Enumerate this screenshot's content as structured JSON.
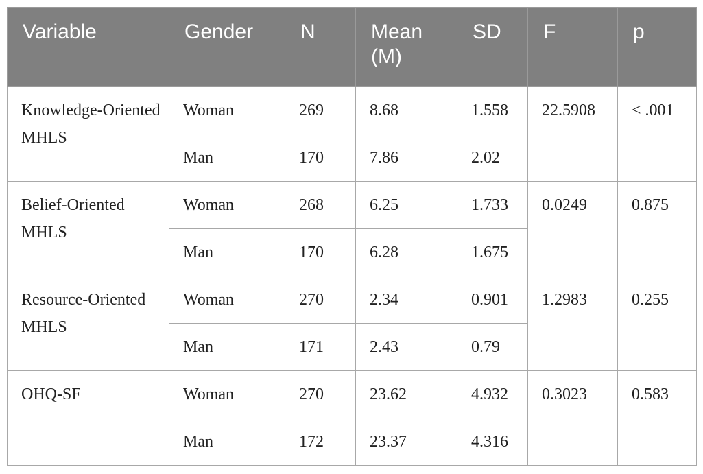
{
  "table": {
    "header": [
      "Variable",
      "Gender",
      "N",
      "Mean (M)",
      "SD",
      "F",
      "p"
    ],
    "groups": [
      {
        "variable": "Knowledge-Oriented MHLS",
        "F": 22.5908,
        "p": "< .001",
        "rows": [
          [
            "Woman",
            269,
            8.68,
            1.558
          ],
          [
            "Man",
            170,
            7.86,
            2.02
          ]
        ]
      },
      {
        "variable": "Belief-Oriented MHLS",
        "F": 0.0249,
        "p": 0.875,
        "rows": [
          [
            "Woman",
            268,
            6.25,
            1.733
          ],
          [
            "Man",
            170,
            6.28,
            1.675
          ]
        ]
      },
      {
        "variable": "Resource-Oriented MHLS",
        "F": 1.2983,
        "p": 0.255,
        "rows": [
          [
            "Woman",
            270,
            2.34,
            0.901
          ],
          [
            "Man",
            171,
            2.43,
            0.79
          ]
        ]
      },
      {
        "variable": "OHQ-SF",
        "F": 0.3023,
        "p": 0.583,
        "rows": [
          [
            "Woman",
            270,
            23.62,
            4.932
          ],
          [
            "Man",
            172,
            23.37,
            4.316
          ]
        ]
      }
    ]
  }
}
